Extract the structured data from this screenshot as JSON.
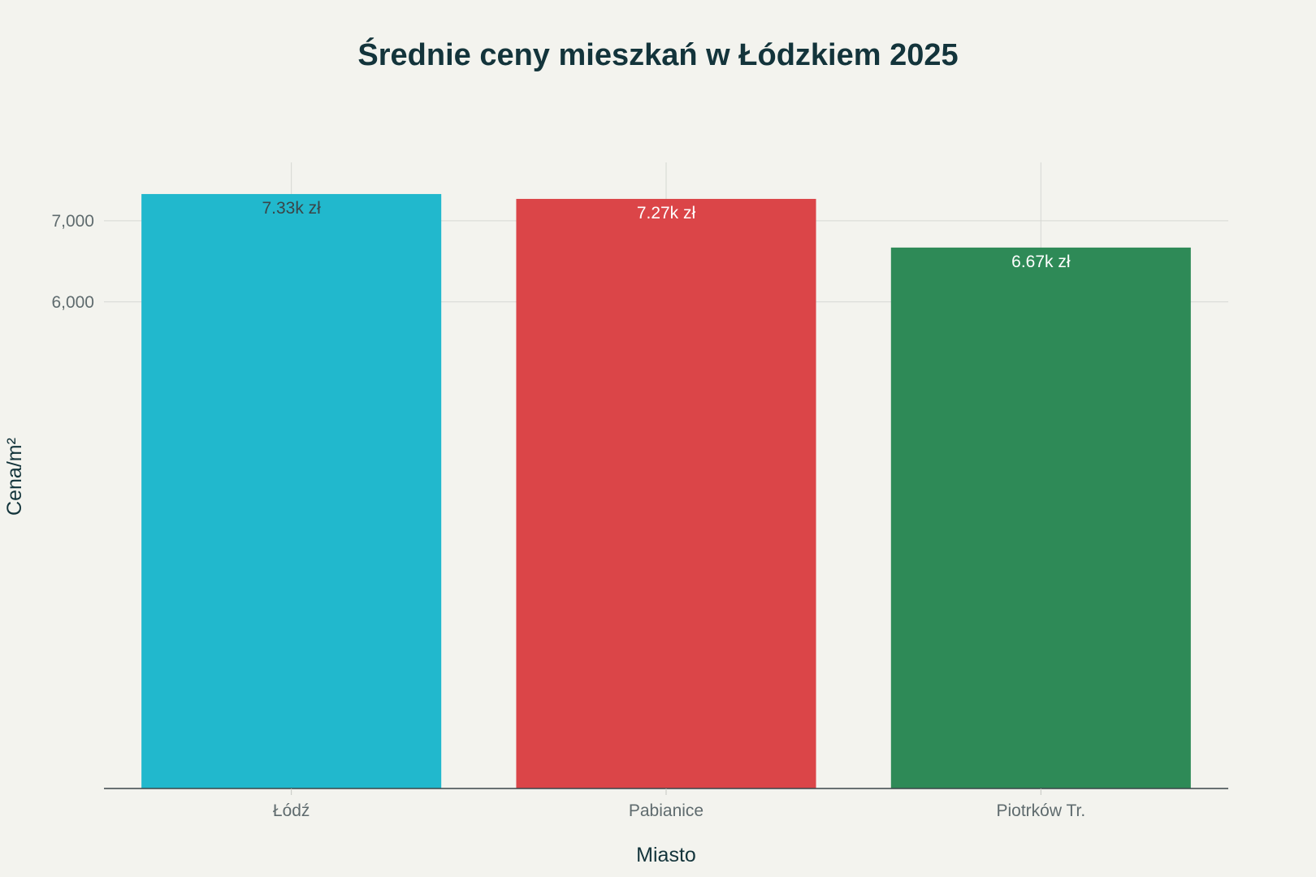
{
  "chart_data": {
    "type": "bar",
    "title": "Średnie ceny mieszkań w Łódzkiem 2025",
    "xlabel": "Miasto",
    "ylabel": "Cena/m²",
    "categories": [
      "Łódź",
      "Pabianice",
      "Piotrków Tr."
    ],
    "values": [
      7330,
      7270,
      6670
    ],
    "data_labels": [
      "7.33k zł",
      "7.27k zł",
      "6.67k zł"
    ],
    "colors": [
      "#21b8cd",
      "#db4548",
      "#2e8a57"
    ],
    "label_colors": [
      "#3a4548",
      "#ffffff",
      "#ffffff"
    ],
    "yticks": [
      6000,
      7000
    ],
    "ytick_labels": [
      "6,000",
      "7,000"
    ],
    "ylim": [
      0,
      7720
    ],
    "grid": true,
    "legend": "none"
  }
}
